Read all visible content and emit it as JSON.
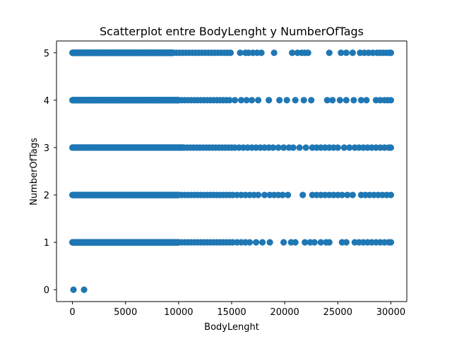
{
  "chart_data": {
    "type": "scatter",
    "title": "Scatterplot entre BodyLenght y NumberOfTags",
    "xlabel": "BodyLenght",
    "ylabel": "NumberOfTags",
    "xlim": [
      -1500,
      31500
    ],
    "ylim": [
      -0.25,
      5.25
    ],
    "xticks": [
      0,
      5000,
      10000,
      15000,
      20000,
      25000,
      30000
    ],
    "yticks": [
      0,
      1,
      2,
      3,
      4,
      5
    ],
    "grid": false,
    "marker_color": "#1f77b4",
    "series": [
      {
        "points": [
          {
            "y": 5,
            "dense_to": 9500,
            "x": [
              9800,
              10100,
              10400,
              10700,
              11000,
              11300,
              11600,
              11900,
              12200,
              12500,
              12800,
              13100,
              13400,
              13700,
              14000,
              14300,
              14600,
              14900,
              15800,
              16300,
              16600,
              17000,
              17400,
              17800,
              19000,
              20700,
              21200,
              21600,
              21900,
              22200,
              24200,
              25300,
              25800,
              26400,
              27100,
              27500,
              27900,
              28300,
              28700,
              29000,
              29300,
              29600,
              29900,
              30000
            ]
          },
          {
            "y": 4,
            "dense_to": 10000,
            "x": [
              10300,
              10600,
              10900,
              11200,
              11500,
              11800,
              12100,
              12400,
              12700,
              13000,
              13300,
              13600,
              13900,
              14200,
              14500,
              14800,
              15300,
              15900,
              16400,
              16900,
              17500,
              18500,
              19500,
              20200,
              21000,
              21800,
              22500,
              24000,
              24500,
              25200,
              25800,
              26500,
              27200,
              27700,
              28600,
              29000,
              29400,
              29700,
              30000
            ]
          },
          {
            "y": 3,
            "dense_to": 10500,
            "x": [
              10800,
              11100,
              11400,
              11700,
              12000,
              12300,
              12600,
              12900,
              13200,
              13500,
              13800,
              14100,
              14400,
              14700,
              15000,
              15300,
              15700,
              16100,
              16500,
              16900,
              17300,
              17700,
              18100,
              18500,
              18900,
              19400,
              19900,
              20400,
              20800,
              21400,
              22000,
              22600,
              23000,
              23400,
              23800,
              24200,
              24600,
              25000,
              25600,
              26100,
              26600,
              27000,
              27400,
              27800,
              28200,
              28600,
              29000,
              29400,
              29800,
              30000
            ]
          },
          {
            "y": 2,
            "dense_to": 10000,
            "x": [
              10300,
              10600,
              10900,
              11200,
              11500,
              11800,
              12100,
              12400,
              12700,
              13000,
              13300,
              13600,
              13900,
              14200,
              14500,
              14800,
              15100,
              15500,
              15900,
              16300,
              16700,
              17100,
              17500,
              18100,
              18600,
              19000,
              19400,
              19800,
              20300,
              21700,
              22600,
              23000,
              23400,
              23800,
              24200,
              24600,
              25000,
              25400,
              25900,
              26400,
              27200,
              27600,
              28000,
              28400,
              28800,
              29200,
              29600,
              30000
            ]
          },
          {
            "y": 1,
            "dense_to": 10000,
            "x": [
              10300,
              10600,
              10900,
              11200,
              11500,
              11800,
              12100,
              12400,
              12700,
              13000,
              13300,
              13600,
              13900,
              14200,
              14500,
              14800,
              15100,
              15500,
              15900,
              16300,
              16700,
              17300,
              17900,
              18600,
              19900,
              20600,
              21000,
              21900,
              22400,
              22800,
              23400,
              23900,
              24200,
              25400,
              25800,
              26600,
              27000,
              27400,
              27800,
              28200,
              28600,
              29000,
              29400,
              29800,
              30000
            ]
          },
          {
            "y": 0,
            "x": [
              100,
              1100
            ]
          }
        ]
      }
    ]
  }
}
